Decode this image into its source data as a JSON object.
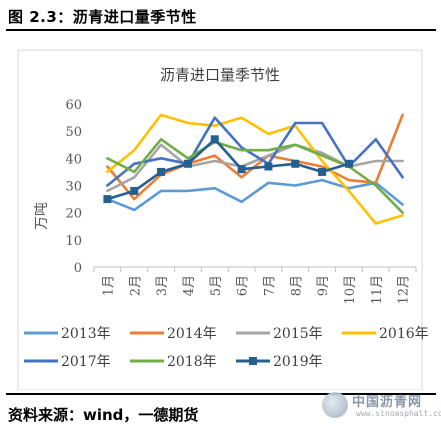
{
  "figure": {
    "caption": "图 2.3：沥青进口量季节性",
    "source": "资料来源：wind，一德期货"
  },
  "watermark": {
    "name": "中国沥青网",
    "url": "www.sinoasphalt.com"
  },
  "chart_data": {
    "type": "line",
    "title": "沥青进口量季节性",
    "ylabel": "万吨",
    "xlabel": "",
    "ylim": [
      0,
      60
    ],
    "yticks": [
      0,
      10,
      20,
      30,
      40,
      50,
      60
    ],
    "grid": false,
    "legend_position": "bottom",
    "categories": [
      "1月",
      "2月",
      "3月",
      "4月",
      "5月",
      "6月",
      "7月",
      "8月",
      "9月",
      "10月",
      "11月",
      "12月"
    ],
    "series": [
      {
        "name": "2013年",
        "color": "#5b9bd5",
        "marker": false,
        "values": [
          25,
          21,
          28,
          28,
          29,
          24,
          31,
          30,
          32,
          29,
          31,
          23
        ]
      },
      {
        "name": "2014年",
        "color": "#ed7d31",
        "marker": false,
        "values": [
          37,
          25,
          34,
          38,
          41,
          33,
          41,
          39,
          37,
          32,
          31,
          56
        ]
      },
      {
        "name": "2015年",
        "color": "#a5a5a5",
        "marker": false,
        "values": [
          28,
          33,
          45,
          37,
          39,
          37,
          41,
          45,
          42,
          37,
          39,
          39
        ]
      },
      {
        "name": "2016年",
        "color": "#ffc000",
        "marker": false,
        "values": [
          35,
          43,
          56,
          53,
          52,
          55,
          49,
          52,
          39,
          28,
          16,
          19
        ]
      },
      {
        "name": "2017年",
        "color": "#4472c4",
        "marker": false,
        "values": [
          30,
          38,
          40,
          38,
          55,
          44,
          38,
          53,
          53,
          37,
          47,
          33
        ]
      },
      {
        "name": "2018年",
        "color": "#70ad47",
        "marker": false,
        "values": [
          40,
          35,
          47,
          40,
          46,
          43,
          43,
          45,
          41,
          37,
          30,
          20
        ]
      },
      {
        "name": "2019年",
        "color": "#255e91",
        "marker": true,
        "values": [
          25,
          28,
          35,
          38,
          47,
          36,
          37,
          38,
          35,
          38,
          null,
          null
        ]
      }
    ]
  }
}
